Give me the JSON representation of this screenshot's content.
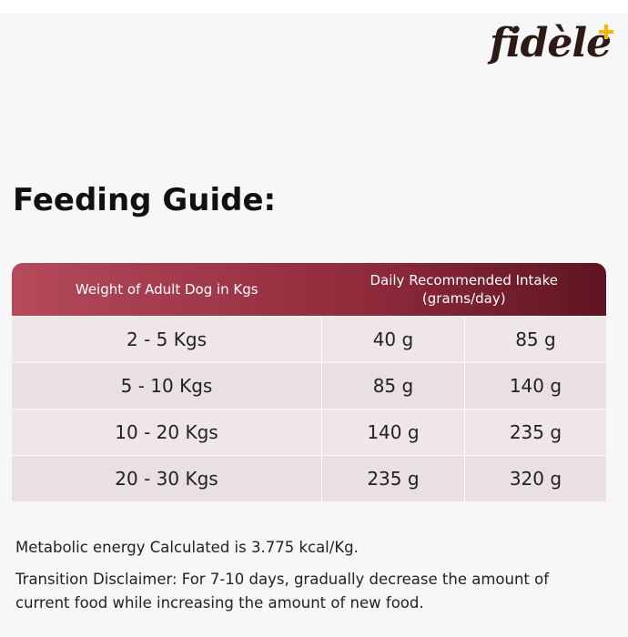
{
  "header": {
    "logo": "fidèle"
  },
  "title": "Feeding Guide:",
  "table": {
    "header": [
      "Weight of Adult Dog in Kgs",
      "Daily Recommended Intake (grams/day)"
    ],
    "rows": [
      [
        "2 - 5 Kgs",
        "40 g",
        "85 g"
      ],
      [
        "5 - 10 Kgs",
        "85 g",
        "140 g"
      ],
      [
        "10 - 20 Kgs",
        "140 g",
        "235 g"
      ],
      [
        "20 - 30 Kgs",
        "235 g",
        "320 g"
      ]
    ]
  },
  "notes": [
    "Metabolic energy Calculated is 3.775 kcal/Kg.",
    "Transition Disclaimer: For 7-10 days, gradually decrease the amount of current food while increasing the amount of new food."
  ]
}
